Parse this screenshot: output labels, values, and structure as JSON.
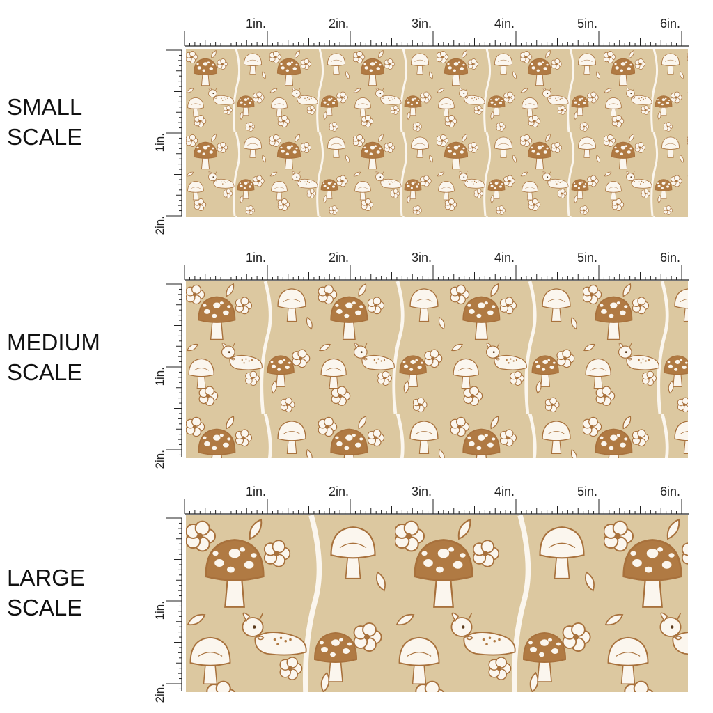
{
  "labels": {
    "small": [
      "SMALL",
      "SCALE"
    ],
    "medium": [
      "MEDIUM",
      "SCALE"
    ],
    "large": [
      "LARGE",
      "SCALE"
    ]
  },
  "ruler": {
    "horizontal_ticks": [
      "1in.",
      "2in.",
      "3in.",
      "4in.",
      "5in.",
      "6in."
    ],
    "vertical_ticks": [
      "1in.",
      "2in."
    ]
  },
  "pattern": {
    "colors": {
      "background": "#dcc8a0",
      "mushroom": "#b07a43",
      "outline": "#a8713c",
      "cream": "#fbf6ee"
    },
    "motifs": [
      "mushroom",
      "fawn",
      "flower",
      "leaf"
    ]
  }
}
